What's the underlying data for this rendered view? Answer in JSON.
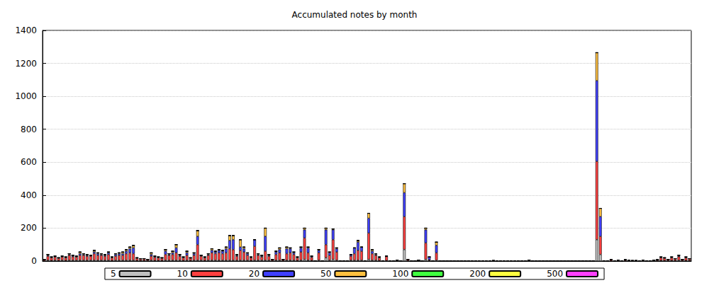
{
  "chart_data": {
    "type": "bar",
    "title": "Accumulated notes by month",
    "stacked": true,
    "grid": true,
    "legend": "bottom",
    "tick_labels": "y",
    "ylim": [
      0,
      1400
    ],
    "yticks": [
      0,
      200,
      400,
      600,
      800,
      1000,
      1200,
      1400
    ],
    "categories": [
      null,
      null,
      null,
      null,
      null,
      null,
      null,
      null,
      null,
      null,
      null,
      null,
      null,
      null,
      null,
      null,
      null,
      null,
      null,
      null,
      null,
      null,
      null,
      null,
      null,
      null,
      null,
      null,
      null,
      null,
      null,
      null,
      null,
      null,
      null,
      null,
      null,
      null,
      null,
      null,
      null,
      null,
      null,
      null,
      null,
      null,
      null,
      null,
      null,
      null,
      null,
      null,
      null,
      null,
      null,
      null,
      null,
      null,
      null,
      null,
      null,
      null,
      null,
      null,
      null,
      null,
      null,
      null,
      null,
      null,
      null,
      null,
      null,
      null,
      null,
      null,
      null,
      null,
      null,
      null,
      null,
      null,
      null,
      null,
      null,
      null,
      null,
      null,
      null,
      null,
      null,
      null,
      null,
      null,
      null,
      null,
      null,
      null,
      null,
      null,
      null,
      null,
      null,
      null,
      null,
      null,
      null,
      null,
      null,
      null,
      null,
      null,
      null,
      null,
      null,
      null,
      null,
      null,
      null,
      null,
      null,
      null,
      null,
      null,
      null,
      null,
      null,
      null,
      null,
      null,
      null,
      null,
      null,
      null,
      null,
      null,
      null,
      null,
      null,
      null,
      null,
      null,
      null,
      null,
      null,
      null,
      null,
      null,
      null,
      null,
      null,
      null,
      null,
      null,
      null,
      null,
      null,
      null,
      null,
      null,
      null,
      null,
      null,
      null,
      null,
      null,
      null,
      null,
      null,
      null,
      null,
      null,
      null,
      null,
      null,
      null,
      null,
      null,
      null,
      null,
      null,
      null
    ],
    "series": [
      {
        "name": "5",
        "color": "#c0c0c0",
        "values": [
          2,
          5,
          3,
          5,
          3,
          5,
          3,
          5,
          5,
          5,
          5,
          5,
          5,
          5,
          5,
          5,
          5,
          5,
          5,
          3,
          5,
          5,
          5,
          5,
          5,
          5,
          3,
          3,
          3,
          2,
          5,
          3,
          3,
          3,
          5,
          5,
          5,
          5,
          5,
          3,
          5,
          3,
          5,
          5,
          5,
          3,
          5,
          5,
          5,
          5,
          5,
          5,
          5,
          5,
          5,
          5,
          5,
          5,
          3,
          5,
          5,
          5,
          5,
          5,
          2,
          5,
          5,
          2,
          5,
          5,
          5,
          3,
          5,
          10,
          5,
          3,
          0,
          5,
          0,
          20,
          5,
          10,
          5,
          0,
          0,
          0,
          5,
          5,
          5,
          5,
          0,
          10,
          5,
          5,
          3,
          0,
          3,
          0,
          0,
          2,
          0,
          70,
          2,
          0,
          0,
          2,
          0,
          10,
          3,
          0,
          5,
          0,
          0,
          0,
          0,
          0,
          0,
          0,
          0,
          0,
          0,
          0,
          0,
          0,
          0,
          0,
          0,
          0,
          0,
          0,
          0,
          0,
          0,
          0,
          0,
          0,
          2,
          0,
          0,
          0,
          0,
          0,
          0,
          0,
          0,
          0,
          0,
          0,
          0,
          0,
          0,
          0,
          0,
          0,
          0,
          130,
          40,
          0,
          0,
          2,
          0,
          2,
          0,
          2,
          2,
          0,
          0,
          0,
          2,
          0,
          0,
          2,
          2,
          3,
          3,
          2,
          3,
          3,
          5,
          2,
          3,
          3
        ]
      },
      {
        "name": "10",
        "color": "#ff4040",
        "values": [
          8,
          25,
          17,
          20,
          14,
          20,
          17,
          30,
          22,
          20,
          30,
          30,
          25,
          25,
          40,
          30,
          30,
          25,
          35,
          17,
          25,
          30,
          30,
          40,
          45,
          40,
          14,
          10,
          10,
          8,
          25,
          20,
          17,
          14,
          35,
          30,
          35,
          45,
          25,
          17,
          30,
          14,
          30,
          95,
          25,
          17,
          30,
          45,
          40,
          45,
          40,
          45,
          70,
          65,
          25,
          60,
          50,
          30,
          17,
          85,
          30,
          20,
          55,
          25,
          8,
          35,
          45,
          8,
          40,
          45,
          35,
          17,
          50,
          130,
          45,
          20,
          0,
          45,
          0,
          80,
          30,
          120,
          50,
          0,
          0,
          0,
          25,
          40,
          60,
          55,
          0,
          160,
          40,
          30,
          17,
          0,
          25,
          0,
          0,
          3,
          0,
          200,
          8,
          0,
          0,
          3,
          0,
          100,
          5,
          0,
          45,
          0,
          0,
          0,
          0,
          0,
          0,
          0,
          0,
          0,
          0,
          0,
          0,
          0,
          0,
          0,
          3,
          0,
          0,
          0,
          0,
          0,
          0,
          0,
          0,
          0,
          3,
          0,
          0,
          0,
          0,
          0,
          0,
          0,
          0,
          0,
          0,
          0,
          0,
          0,
          0,
          0,
          0,
          0,
          0,
          475,
          110,
          0,
          0,
          8,
          0,
          3,
          0,
          6,
          3,
          3,
          3,
          0,
          4,
          0,
          0,
          3,
          6,
          17,
          14,
          8,
          17,
          10,
          22,
          8,
          17,
          10
        ]
      },
      {
        "name": "20",
        "color": "#4040ff",
        "values": [
          0,
          5,
          3,
          3,
          3,
          3,
          3,
          5,
          5,
          3,
          10,
          5,
          5,
          3,
          10,
          10,
          5,
          5,
          10,
          3,
          10,
          10,
          10,
          15,
          25,
          35,
          3,
          2,
          2,
          0,
          10,
          5,
          3,
          3,
          20,
          5,
          10,
          30,
          5,
          3,
          15,
          3,
          10,
          50,
          5,
          3,
          5,
          15,
          10,
          15,
          15,
          25,
          50,
          60,
          5,
          20,
          20,
          10,
          3,
          40,
          5,
          5,
          90,
          5,
          0,
          15,
          20,
          0,
          30,
          25,
          10,
          3,
          25,
          50,
          30,
          5,
          0,
          15,
          0,
          90,
          15,
          60,
          20,
          0,
          0,
          0,
          10,
          35,
          50,
          25,
          0,
          90,
          15,
          5,
          3,
          0,
          2,
          0,
          0,
          0,
          0,
          145,
          0,
          0,
          0,
          0,
          0,
          80,
          17,
          0,
          45,
          0,
          0,
          0,
          0,
          0,
          0,
          0,
          0,
          0,
          0,
          0,
          0,
          0,
          0,
          0,
          0,
          0,
          0,
          0,
          0,
          0,
          0,
          0,
          0,
          0,
          0,
          0,
          0,
          0,
          0,
          0,
          0,
          0,
          0,
          0,
          0,
          0,
          0,
          0,
          0,
          0,
          0,
          0,
          0,
          490,
          120,
          0,
          0,
          0,
          0,
          0,
          0,
          0,
          0,
          0,
          0,
          0,
          0,
          0,
          0,
          0,
          0,
          3,
          3,
          0,
          3,
          2,
          5,
          0,
          3,
          2
        ]
      },
      {
        "name": "50",
        "color": "#ffc040",
        "values": [
          0,
          5,
          2,
          2,
          0,
          2,
          2,
          5,
          3,
          2,
          10,
          5,
          5,
          2,
          10,
          5,
          5,
          5,
          5,
          2,
          5,
          5,
          10,
          10,
          10,
          15,
          0,
          0,
          0,
          0,
          10,
          2,
          2,
          0,
          10,
          5,
          10,
          20,
          5,
          2,
          10,
          0,
          5,
          35,
          0,
          2,
          5,
          10,
          5,
          5,
          5,
          10,
          30,
          25,
          5,
          45,
          10,
          5,
          2,
          0,
          5,
          5,
          50,
          5,
          0,
          5,
          10,
          0,
          10,
          5,
          5,
          2,
          5,
          10,
          5,
          2,
          0,
          5,
          0,
          10,
          5,
          5,
          5,
          0,
          0,
          0,
          0,
          0,
          10,
          0,
          0,
          30,
          10,
          5,
          2,
          0,
          0,
          0,
          0,
          0,
          0,
          55,
          0,
          0,
          0,
          0,
          0,
          10,
          0,
          0,
          20,
          0,
          0,
          0,
          0,
          0,
          0,
          0,
          0,
          0,
          0,
          0,
          0,
          0,
          0,
          0,
          0,
          0,
          0,
          0,
          0,
          0,
          0,
          0,
          0,
          0,
          0,
          0,
          0,
          0,
          0,
          0,
          0,
          0,
          0,
          0,
          0,
          0,
          0,
          0,
          0,
          0,
          0,
          0,
          0,
          170,
          50,
          0,
          0,
          0,
          0,
          0,
          0,
          0,
          0,
          0,
          0,
          0,
          0,
          0,
          0,
          0,
          0,
          2,
          0,
          0,
          2,
          0,
          3,
          0,
          2,
          0
        ]
      },
      {
        "name": "100",
        "color": "#40ff40",
        "values": [
          0,
          0,
          0,
          0,
          0,
          0,
          0,
          0,
          0,
          0,
          0,
          0,
          0,
          0,
          0,
          0,
          0,
          0,
          0,
          0,
          0,
          0,
          0,
          0,
          0,
          0,
          0,
          0,
          0,
          0,
          0,
          0,
          0,
          0,
          0,
          0,
          0,
          0,
          0,
          0,
          0,
          0,
          0,
          0,
          0,
          0,
          0,
          0,
          0,
          0,
          0,
          0,
          0,
          0,
          0,
          0,
          0,
          0,
          0,
          0,
          0,
          0,
          0,
          0,
          0,
          0,
          0,
          0,
          0,
          0,
          0,
          0,
          0,
          0,
          0,
          0,
          0,
          0,
          0,
          0,
          0,
          0,
          0,
          0,
          0,
          0,
          0,
          0,
          0,
          0,
          0,
          0,
          0,
          0,
          0,
          0,
          0,
          0,
          0,
          0,
          0,
          0,
          0,
          0,
          0,
          0,
          0,
          0,
          0,
          0,
          0,
          0,
          0,
          0,
          0,
          0,
          0,
          0,
          0,
          0,
          0,
          0,
          0,
          0,
          0,
          0,
          0,
          0,
          0,
          0,
          0,
          0,
          0,
          0,
          0,
          0,
          0,
          0,
          0,
          0,
          0,
          0,
          0,
          0,
          0,
          0,
          0,
          0,
          0,
          0,
          0,
          0,
          0,
          0,
          0,
          0,
          0,
          0,
          0,
          0,
          0,
          0,
          0,
          0,
          0,
          0,
          0,
          0,
          0,
          0,
          0,
          0,
          0,
          0,
          0,
          0,
          0,
          0,
          0,
          0,
          0,
          0
        ]
      },
      {
        "name": "200",
        "color": "#ffff40",
        "values": [
          0,
          0,
          0,
          0,
          0,
          0,
          0,
          0,
          0,
          0,
          0,
          0,
          0,
          0,
          0,
          0,
          0,
          0,
          0,
          0,
          0,
          0,
          0,
          0,
          0,
          0,
          0,
          0,
          0,
          0,
          0,
          0,
          0,
          0,
          0,
          0,
          0,
          0,
          0,
          0,
          0,
          0,
          0,
          0,
          0,
          0,
          0,
          0,
          0,
          0,
          0,
          0,
          0,
          0,
          0,
          0,
          0,
          0,
          0,
          0,
          0,
          0,
          0,
          0,
          0,
          0,
          0,
          0,
          0,
          0,
          0,
          0,
          0,
          0,
          0,
          0,
          0,
          0,
          0,
          0,
          0,
          0,
          0,
          0,
          0,
          0,
          0,
          0,
          0,
          0,
          0,
          0,
          0,
          0,
          0,
          0,
          0,
          0,
          0,
          0,
          0,
          0,
          0,
          0,
          0,
          0,
          0,
          0,
          0,
          0,
          0,
          0,
          0,
          0,
          0,
          0,
          0,
          0,
          0,
          0,
          0,
          0,
          0,
          0,
          0,
          0,
          0,
          0,
          0,
          0,
          0,
          0,
          0,
          0,
          0,
          0,
          0,
          0,
          0,
          0,
          0,
          0,
          0,
          0,
          0,
          0,
          0,
          0,
          0,
          0,
          0,
          0,
          0,
          0,
          0,
          0,
          0,
          0,
          0,
          0,
          0,
          0,
          0,
          0,
          0,
          0,
          0,
          0,
          0,
          0,
          0,
          0,
          0,
          0,
          0,
          0,
          0,
          0,
          0,
          0,
          0,
          0
        ]
      },
      {
        "name": "500",
        "color": "#ff40ff",
        "values": [
          0,
          0,
          0,
          0,
          0,
          0,
          0,
          0,
          0,
          0,
          0,
          0,
          0,
          0,
          0,
          0,
          0,
          0,
          0,
          0,
          0,
          0,
          0,
          0,
          0,
          0,
          0,
          0,
          0,
          0,
          0,
          0,
          0,
          0,
          0,
          0,
          0,
          0,
          0,
          0,
          0,
          0,
          0,
          0,
          0,
          0,
          0,
          0,
          0,
          0,
          0,
          0,
          0,
          0,
          0,
          0,
          0,
          0,
          0,
          0,
          0,
          0,
          0,
          0,
          0,
          0,
          0,
          0,
          0,
          0,
          0,
          0,
          0,
          0,
          0,
          0,
          0,
          0,
          0,
          0,
          0,
          0,
          0,
          0,
          0,
          0,
          0,
          0,
          0,
          0,
          0,
          0,
          0,
          0,
          0,
          0,
          0,
          0,
          0,
          0,
          0,
          0,
          0,
          0,
          0,
          0,
          0,
          0,
          0,
          0,
          0,
          0,
          0,
          0,
          0,
          0,
          0,
          0,
          0,
          0,
          0,
          0,
          0,
          0,
          0,
          0,
          0,
          0,
          0,
          0,
          0,
          0,
          0,
          0,
          0,
          0,
          0,
          0,
          0,
          0,
          0,
          0,
          0,
          0,
          0,
          0,
          0,
          0,
          0,
          0,
          0,
          0,
          0,
          0,
          0,
          0,
          0,
          0,
          0,
          0,
          0,
          0,
          0,
          0,
          0,
          0,
          0,
          0,
          0,
          0,
          0,
          0,
          0,
          0,
          0,
          0,
          0,
          0,
          0,
          0,
          0,
          0
        ]
      }
    ]
  }
}
